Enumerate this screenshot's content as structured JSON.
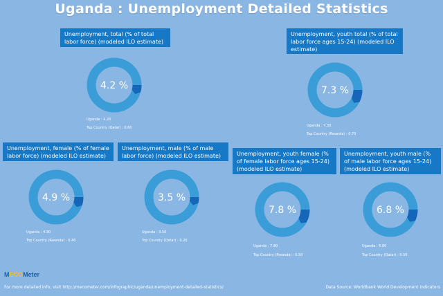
{
  "title": "Uganda : Unemployment Detailed Statistics",
  "colors": {
    "background": "#8ab6e4",
    "ring": "#3a9dd8",
    "ring_dark": "#1566b8",
    "label_bg": "#1778c5"
  },
  "panels": [
    {
      "label": "Unemployment, total (% of total labor force) (modeled ILO estimate)",
      "display": "4.2 %",
      "country_line": "Uganda : 4.20",
      "top_line": "Top Country (Qatar) : 0.60"
    },
    {
      "label": "Unemployment, youth total (% of total labor force ages 15-24) (modeled ILO estimate)",
      "display": "7.3 %",
      "country_line": "Uganda : 7.30",
      "top_line": "Top Country (Rwanda) : 0.70"
    },
    {
      "label": "Unemployment, female (% of female labor force) (modeled ILO estimate)",
      "display": "4.9 %",
      "country_line": "Uganda : 4.90",
      "top_line": "Top Country (Rwanda) : 0.40"
    },
    {
      "label": "Unemployment, male (% of male labor force) (modeled ILO estimate)",
      "display": "3.5 %",
      "country_line": "Uganda : 3.50",
      "top_line": "Top Country (Qatar) : 0.20"
    },
    {
      "label": "Unemployment, youth female (% of female labor force ages 15-24) (modeled ILO estimate)",
      "display": "7.8 %",
      "country_line": "Uganda : 7.80",
      "top_line": "Top Country (Rwanda) : 0.50"
    },
    {
      "label": "Unemployment, youth male (% of male labor force ages 15-24) (modeled ILO estimate)",
      "display": "6.8 %",
      "country_line": "Uganda : 6.80",
      "top_line": "Top Country (Qatar) : 0.50"
    }
  ],
  "chart_data": [
    {
      "type": "pie",
      "title": "Unemployment, total (% of total labor force) (modeled ILO estimate)",
      "value": 4.2,
      "top_country": "Qatar",
      "top_value": 0.6
    },
    {
      "type": "pie",
      "title": "Unemployment, youth total (% of total labor force ages 15-24) (modeled ILO estimate)",
      "value": 7.3,
      "top_country": "Rwanda",
      "top_value": 0.7
    },
    {
      "type": "pie",
      "title": "Unemployment, female (% of female labor force) (modeled ILO estimate)",
      "value": 4.9,
      "top_country": "Rwanda",
      "top_value": 0.4
    },
    {
      "type": "pie",
      "title": "Unemployment, male (% of male labor force) (modeled ILO estimate)",
      "value": 3.5,
      "top_country": "Qatar",
      "top_value": 0.2
    },
    {
      "type": "pie",
      "title": "Unemployment, youth female (% of female labor force ages 15-24) (modeled ILO estimate)",
      "value": 7.8,
      "top_country": "Rwanda",
      "top_value": 0.5
    },
    {
      "type": "pie",
      "title": "Unemployment, youth male (% of male labor force ages 15-24) (modeled ILO estimate)",
      "value": 6.8,
      "top_country": "Qatar",
      "top_value": 0.5
    }
  ],
  "logo": {
    "part1": "M",
    "part2": "ECO",
    "part3": "Meter"
  },
  "footer": {
    "left": "For more detailed info, visit http://mecometer.com/infographic/uganda/unemployment-detailed-statistics/",
    "right": "Data Source: Worldbank World Development Indicators"
  }
}
